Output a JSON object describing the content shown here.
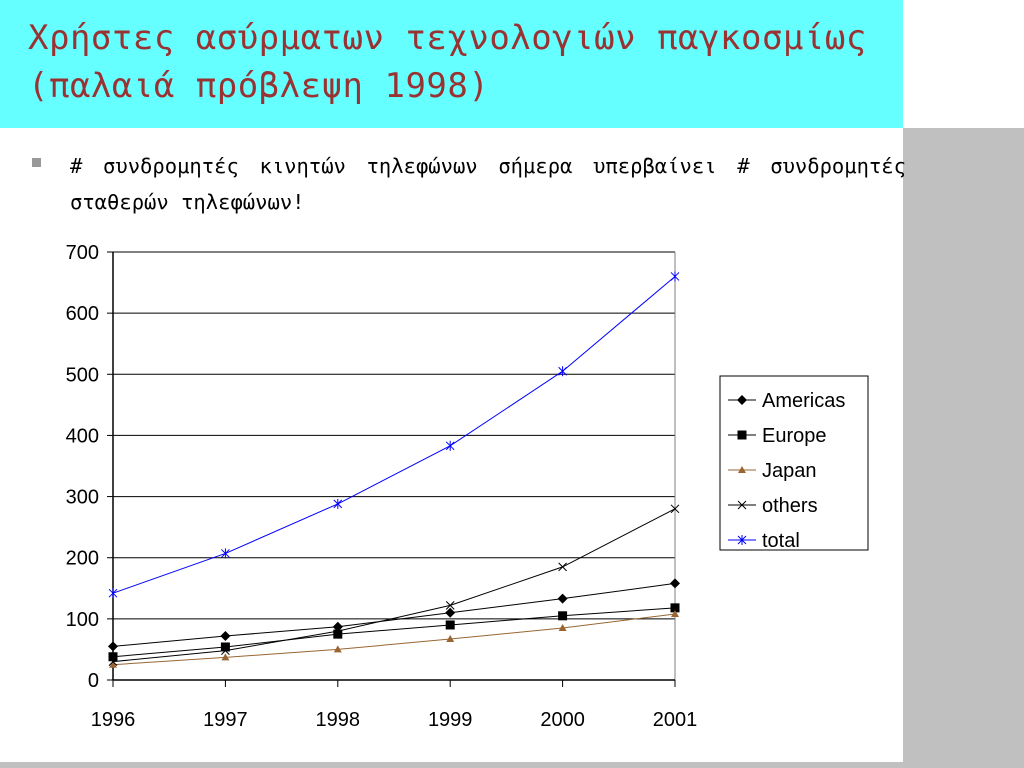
{
  "slide": {
    "title_line1": "Χρήστες ασύρματων τεχνολογιών παγκοσμίως",
    "title_line2": "(παλαιά πρόβλεψη 1998)",
    "bullet": "# συνδρομητές κινητών τηλεφώνων σήμερα υπερβαίνει # συνδρομητές σταθερών τηλεφώνων!",
    "colors": {
      "title_band": "#66ffff",
      "title_text": "#993333",
      "side_band": "#c0c0c0"
    }
  },
  "chart_data": {
    "type": "line",
    "title": "",
    "xlabel": "",
    "ylabel": "",
    "categories": [
      "1996",
      "1997",
      "1998",
      "1999",
      "2000",
      "2001"
    ],
    "ylim": [
      0,
      700
    ],
    "yticks": [
      "0",
      "100",
      "200",
      "300",
      "400",
      "500",
      "600",
      "700"
    ],
    "grid": "horizontal",
    "legend_position": "right",
    "series": [
      {
        "name": "Americas",
        "values": [
          55,
          72,
          87,
          110,
          133,
          158
        ],
        "color": "#000000",
        "marker": "diamond"
      },
      {
        "name": "Europe",
        "values": [
          38,
          54,
          75,
          90,
          105,
          118
        ],
        "color": "#000000",
        "marker": "square"
      },
      {
        "name": "Japan",
        "values": [
          25,
          37,
          50,
          67,
          85,
          108
        ],
        "color": "#996633",
        "marker": "triangle"
      },
      {
        "name": "others",
        "values": [
          30,
          48,
          80,
          122,
          185,
          280
        ],
        "color": "#000000",
        "marker": "x"
      },
      {
        "name": "total",
        "values": [
          142,
          207,
          288,
          383,
          505,
          660
        ],
        "color": "#0000ff",
        "marker": "star"
      }
    ]
  }
}
